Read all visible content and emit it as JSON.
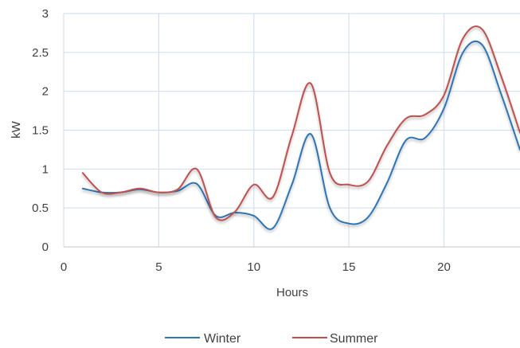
{
  "chart_data": {
    "type": "line",
    "title": "",
    "xlabel": "Hours",
    "ylabel": "kW",
    "xlim": [
      0,
      24
    ],
    "ylim": [
      0,
      3
    ],
    "xticks": [
      0,
      5,
      10,
      15,
      20
    ],
    "yticks": [
      0,
      0.5,
      1,
      1.5,
      2,
      2.5,
      3
    ],
    "xtick_labels": [
      "0",
      "5",
      "10",
      "15",
      "20"
    ],
    "ytick_labels": [
      "0",
      "0.5",
      "1",
      "1.5",
      "2",
      "2.5",
      "3"
    ],
    "grid": true,
    "legend_position": "bottom",
    "smooth": true,
    "series": [
      {
        "name": "Winter",
        "color": "#2E75B6",
        "x": [
          1,
          2,
          3,
          4,
          5,
          6,
          7,
          8,
          9,
          10,
          11,
          12,
          13,
          14,
          15,
          16,
          17,
          18,
          19,
          20,
          21,
          22,
          23,
          24
        ],
        "y": [
          0.75,
          0.7,
          0.7,
          0.74,
          0.7,
          0.72,
          0.81,
          0.4,
          0.44,
          0.4,
          0.24,
          0.8,
          1.45,
          0.5,
          0.3,
          0.38,
          0.82,
          1.37,
          1.4,
          1.78,
          2.5,
          2.6,
          1.97,
          1.25
        ]
      },
      {
        "name": "Summer",
        "color": "#C0504D",
        "x": [
          1,
          2,
          3,
          4,
          5,
          6,
          7,
          8,
          9,
          10,
          11,
          12,
          13,
          14,
          15,
          16,
          17,
          18,
          19,
          20,
          21,
          22,
          23,
          24
        ],
        "y": [
          0.95,
          0.7,
          0.7,
          0.75,
          0.7,
          0.74,
          1.0,
          0.38,
          0.45,
          0.8,
          0.64,
          1.43,
          2.1,
          0.95,
          0.8,
          0.84,
          1.3,
          1.65,
          1.7,
          1.95,
          2.68,
          2.8,
          2.2,
          1.47
        ]
      }
    ]
  }
}
